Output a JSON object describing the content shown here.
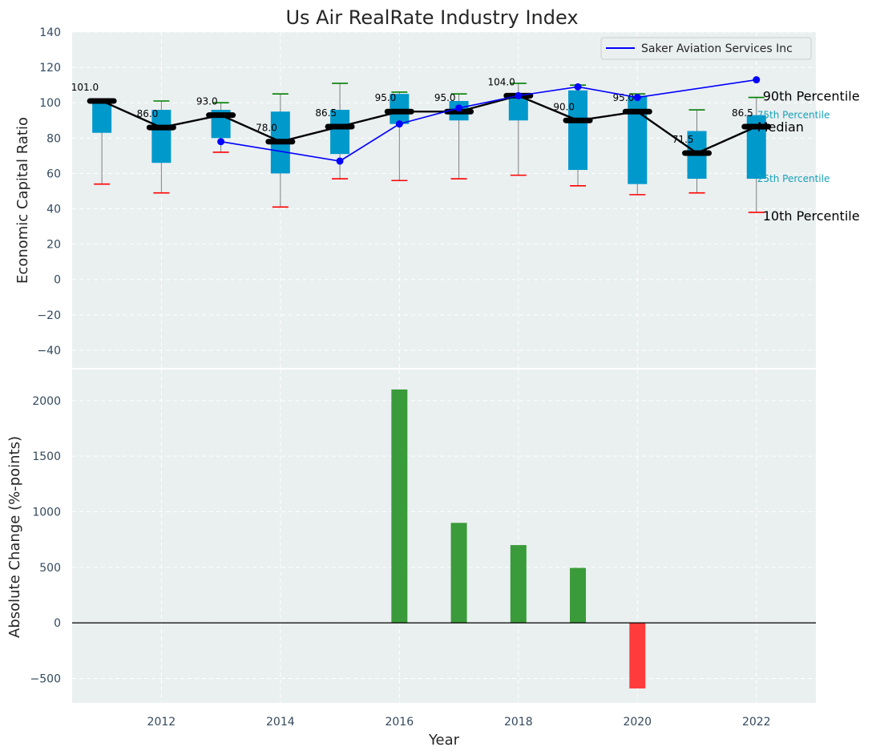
{
  "chart_data": [
    {
      "type": "box",
      "title": "Us Air RealRate Industry Index",
      "ylabel": "Economic Capital Ratio",
      "ylim": [
        -50,
        140
      ],
      "yticks": [
        -40,
        -20,
        0,
        20,
        40,
        60,
        80,
        100,
        120,
        140
      ],
      "xlim": [
        2010.5,
        2023
      ],
      "years": [
        2011,
        2012,
        2013,
        2014,
        2015,
        2016,
        2017,
        2018,
        2019,
        2020,
        2021,
        2022
      ],
      "p10": [
        54,
        49,
        72,
        41,
        57,
        56,
        57,
        59,
        53,
        48,
        49,
        38
      ],
      "p25": [
        83,
        66,
        80,
        60,
        71,
        88,
        90,
        90,
        62,
        54,
        57,
        57
      ],
      "median": [
        101.0,
        86.0,
        93.0,
        78.0,
        86.5,
        95.0,
        95.0,
        104.0,
        90.0,
        95.0,
        71.5,
        86.5
      ],
      "median_labels": [
        "101.0",
        "86.0",
        "93.0",
        "78.0",
        "86.5",
        "95.0",
        "95.0",
        "104.0",
        "90.0",
        "95.0",
        "71.5",
        "86.5"
      ],
      "p75": [
        101,
        96,
        96,
        95,
        96,
        105,
        101,
        104,
        107,
        104,
        84,
        93
      ],
      "p90": [
        102,
        101,
        100,
        105,
        111,
        106,
        105,
        111,
        110,
        105,
        96,
        103
      ],
      "company": {
        "name": "Saker Aviation Services Inc",
        "years": [
          2013,
          2015,
          2016,
          2017,
          2018,
          2019,
          2020,
          2022
        ],
        "values": [
          78,
          67,
          88,
          97,
          104,
          109,
          103,
          113
        ]
      },
      "annotations": {
        "p90": "90th Percentile",
        "p75": "75th Percentile",
        "median": "Median",
        "p25": "25th Percentile",
        "p10": "10th Percentile"
      },
      "colors": {
        "box": "#0099cc",
        "median": "#000000",
        "company": "#0000ff",
        "p90_cap": "#008000",
        "p10_cap": "#ff0000",
        "whisker": "#808080",
        "background": "#eaeff0",
        "grid": "#ffffff"
      }
    },
    {
      "type": "bar",
      "ylabel": "Absolute Change (%-points)",
      "xlabel": "Year",
      "ylim": [
        -720,
        2280
      ],
      "yticks": [
        -500,
        0,
        500,
        1000,
        1500,
        2000
      ],
      "xticks": [
        2012,
        2014,
        2016,
        2018,
        2020,
        2022
      ],
      "x": [
        2016,
        2017,
        2018,
        2019,
        2020
      ],
      "values": [
        2100,
        900,
        700,
        495,
        -590
      ],
      "colors": {
        "positive": "#3a9b3a",
        "negative": "#ff3b3b"
      }
    }
  ]
}
